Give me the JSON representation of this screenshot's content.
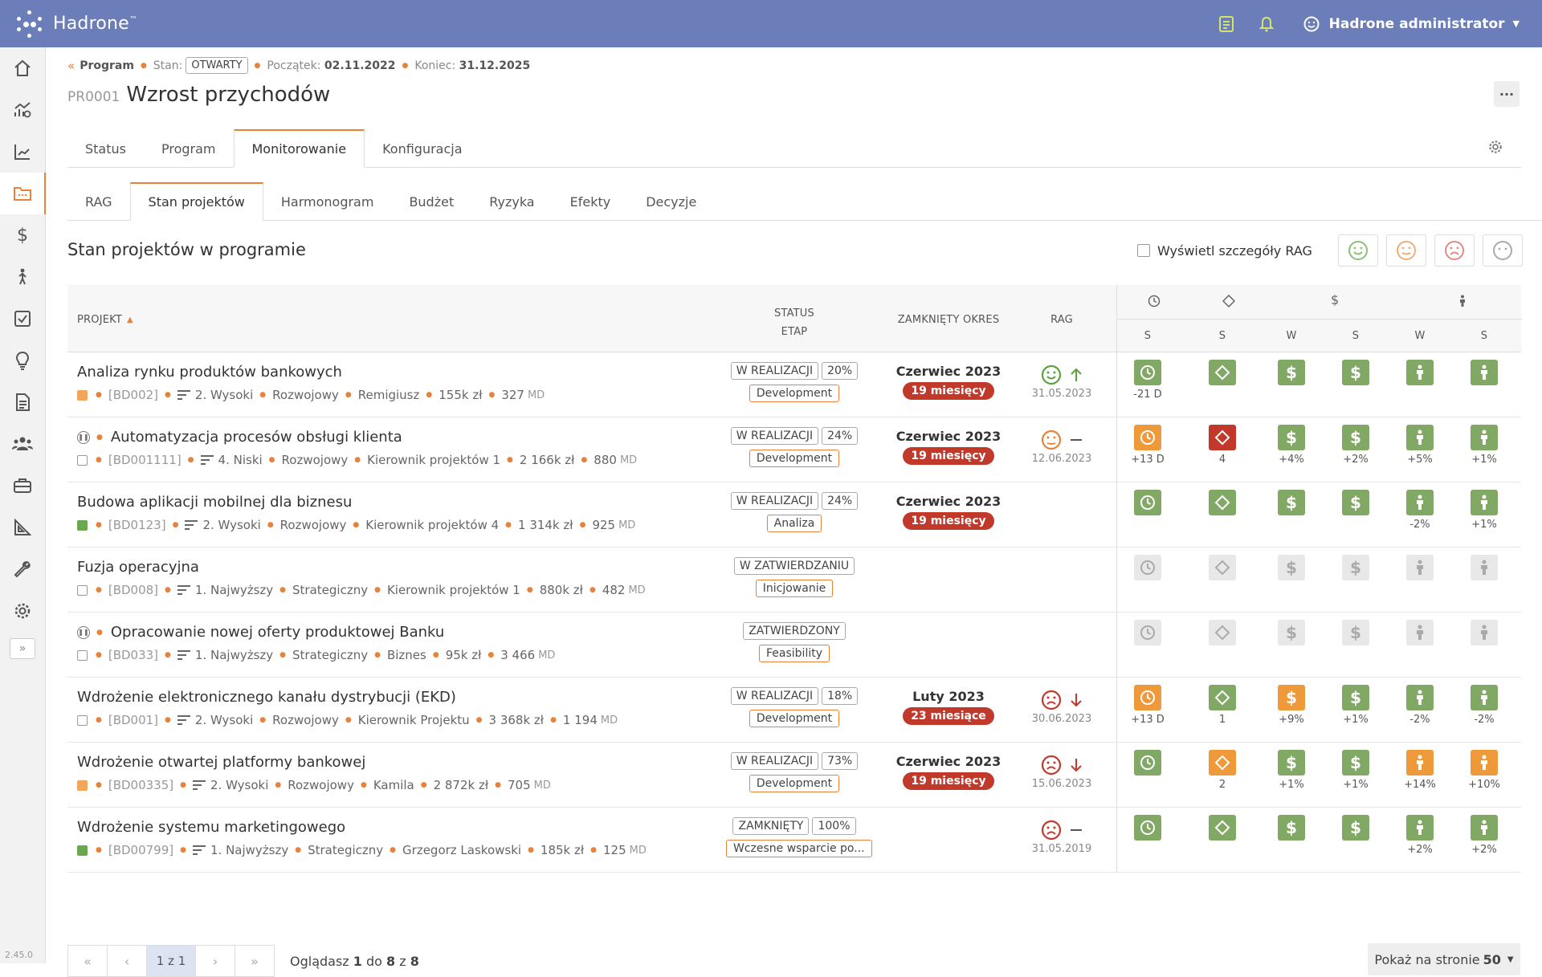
{
  "app": {
    "name": "Hadrone",
    "tm": "™",
    "version": "2.45.0",
    "user": "Hadrone administrator"
  },
  "breadcrumb": {
    "back_label": "Program",
    "stan_label": "Stan:",
    "stan_value": "OTWARTY",
    "start_label": "Początek:",
    "start_value": "02.11.2022",
    "end_label": "Koniec:",
    "end_value": "31.12.2025"
  },
  "page": {
    "code": "PR0001",
    "title": "Wzrost przychodów",
    "more_label": "···"
  },
  "tabs_main": [
    "Status",
    "Program",
    "Monitorowanie",
    "Konfiguracja"
  ],
  "tabs_sub": [
    "RAG",
    "Stan projektów",
    "Harmonogram",
    "Budżet",
    "Ryzyka",
    "Efekty",
    "Decyzje"
  ],
  "section": {
    "title": "Stan projektów w programie",
    "rag_details_label": "Wyświetl szczegóły RAG"
  },
  "table": {
    "headers": {
      "project": "PROJEKT",
      "status": "STATUS",
      "stage": "ETAP",
      "period": "ZAMKNIĘTY OKRES",
      "rag": "RAG",
      "sub": [
        "S",
        "S",
        "W",
        "S",
        "W",
        "S"
      ]
    },
    "rows": [
      {
        "name": "Analiza rynku produktów bankowych",
        "paused": false,
        "icon": "orange",
        "id": "[BD002]",
        "priority": "2. Wysoki",
        "type": "Rozwojowy",
        "owner": "Remigiusz",
        "budget": "155k zł",
        "effort": "327",
        "effort_unit": "MD",
        "status": "W REALIZACJI",
        "pct": "20%",
        "stage": "Development",
        "month": "Czerwiec 2023",
        "months_ago": "19 miesięcy",
        "rag_face": "happy",
        "rag_trend": "up",
        "rag_date": "31.05.2023",
        "kpi": [
          {
            "c": "green",
            "v": "-21 D"
          },
          {
            "c": "green",
            "v": ""
          },
          {
            "c": "green",
            "v": ""
          },
          {
            "c": "green",
            "v": ""
          },
          {
            "c": "green",
            "v": ""
          },
          {
            "c": "green",
            "v": ""
          }
        ]
      },
      {
        "name": "Automatyzacja procesów obsługi klienta",
        "paused": true,
        "icon": "gray",
        "id": "[BD001111]",
        "priority": "4. Niski",
        "type": "Rozwojowy",
        "owner": "Kierownik projektów 1",
        "budget": "2 166k zł",
        "effort": "880",
        "effort_unit": "MD",
        "status": "W REALIZACJI",
        "pct": "24%",
        "stage": "Development",
        "month": "Czerwiec 2023",
        "months_ago": "19 miesięcy",
        "rag_face": "neutral",
        "rag_trend": "flat",
        "rag_date": "12.06.2023",
        "kpi": [
          {
            "c": "orange",
            "v": "+13 D"
          },
          {
            "c": "red",
            "v": "4"
          },
          {
            "c": "green",
            "v": "+4%"
          },
          {
            "c": "green",
            "v": "+2%"
          },
          {
            "c": "green",
            "v": "+5%"
          },
          {
            "c": "green",
            "v": "+1%"
          }
        ]
      },
      {
        "name": "Budowa aplikacji mobilnej dla biznesu",
        "paused": false,
        "icon": "green",
        "id": "[BD0123]",
        "priority": "2. Wysoki",
        "type": "Rozwojowy",
        "owner": "Kierownik projektów 4",
        "budget": "1 314k zł",
        "effort": "925",
        "effort_unit": "MD",
        "status": "W REALIZACJI",
        "pct": "24%",
        "stage": "Analiza",
        "month": "Czerwiec 2023",
        "months_ago": "19 miesięcy",
        "rag_face": "",
        "rag_trend": "",
        "rag_date": "",
        "kpi": [
          {
            "c": "green",
            "v": ""
          },
          {
            "c": "green",
            "v": ""
          },
          {
            "c": "green",
            "v": ""
          },
          {
            "c": "green",
            "v": ""
          },
          {
            "c": "green",
            "v": "-2%"
          },
          {
            "c": "green",
            "v": "+1%"
          }
        ]
      },
      {
        "name": "Fuzja operacyjna",
        "paused": false,
        "icon": "gray",
        "id": "[BD008]",
        "priority": "1. Najwyższy",
        "type": "Strategiczny",
        "owner": "Kierownik projektów 1",
        "budget": "880k zł",
        "effort": "482",
        "effort_unit": "MD",
        "status": "W ZATWIERDZANIU",
        "pct": "",
        "stage": "Inicjowanie",
        "month": "",
        "months_ago": "",
        "rag_face": "",
        "rag_trend": "",
        "rag_date": "",
        "kpi": [
          {
            "c": "gray",
            "v": ""
          },
          {
            "c": "gray",
            "v": ""
          },
          {
            "c": "gray",
            "v": ""
          },
          {
            "c": "gray",
            "v": ""
          },
          {
            "c": "gray",
            "v": ""
          },
          {
            "c": "gray",
            "v": ""
          }
        ]
      },
      {
        "name": "Opracowanie nowej oferty produktowej Banku",
        "paused": true,
        "icon": "gray",
        "id": "[BD033]",
        "priority": "1. Najwyższy",
        "type": "Strategiczny",
        "owner": "Biznes",
        "budget": "95k zł",
        "effort": "3 466",
        "effort_unit": "MD",
        "status": "ZATWIERDZONY",
        "pct": "",
        "stage": "Feasibility",
        "month": "",
        "months_ago": "",
        "rag_face": "",
        "rag_trend": "",
        "rag_date": "",
        "kpi": [
          {
            "c": "gray",
            "v": ""
          },
          {
            "c": "gray",
            "v": ""
          },
          {
            "c": "gray",
            "v": ""
          },
          {
            "c": "gray",
            "v": ""
          },
          {
            "c": "gray",
            "v": ""
          },
          {
            "c": "gray",
            "v": ""
          }
        ]
      },
      {
        "name": "Wdrożenie elektronicznego kanału dystrybucji (EKD)",
        "paused": false,
        "icon": "gray",
        "id": "[BD001]",
        "priority": "2. Wysoki",
        "type": "Rozwojowy",
        "owner": "Kierownik Projektu",
        "budget": "3 368k zł",
        "effort": "1 194",
        "effort_unit": "MD",
        "status": "W REALIZACJI",
        "pct": "18%",
        "stage": "Development",
        "month": "Luty 2023",
        "months_ago": "23 miesiące",
        "rag_face": "sad",
        "rag_trend": "down",
        "rag_date": "30.06.2023",
        "kpi": [
          {
            "c": "orange",
            "v": "+13 D"
          },
          {
            "c": "green",
            "v": "1"
          },
          {
            "c": "orange",
            "v": "+9%"
          },
          {
            "c": "green",
            "v": "+1%"
          },
          {
            "c": "green",
            "v": "-2%"
          },
          {
            "c": "green",
            "v": "-2%"
          }
        ]
      },
      {
        "name": "Wdrożenie otwartej platformy bankowej",
        "paused": false,
        "icon": "orange",
        "id": "[BD00335]",
        "priority": "2. Wysoki",
        "type": "Rozwojowy",
        "owner": "Kamila",
        "budget": "2 872k zł",
        "effort": "705",
        "effort_unit": "MD",
        "status": "W REALIZACJI",
        "pct": "73%",
        "stage": "Development",
        "month": "Czerwiec 2023",
        "months_ago": "19 miesięcy",
        "rag_face": "sad",
        "rag_trend": "down",
        "rag_date": "15.06.2023",
        "kpi": [
          {
            "c": "green",
            "v": ""
          },
          {
            "c": "orange",
            "v": "2"
          },
          {
            "c": "green",
            "v": "+1%"
          },
          {
            "c": "green",
            "v": "+1%"
          },
          {
            "c": "orange",
            "v": "+14%"
          },
          {
            "c": "orange",
            "v": "+10%"
          }
        ]
      },
      {
        "name": "Wdrożenie systemu marketingowego",
        "paused": false,
        "icon": "green",
        "id": "[BD00799]",
        "priority": "1. Najwyższy",
        "type": "Strategiczny",
        "owner": "Grzegorz Laskowski",
        "budget": "185k zł",
        "effort": "125",
        "effort_unit": "MD",
        "status": "ZAMKNIĘTY",
        "pct": "100%",
        "stage": "Wczesne wsparcie po...",
        "month": "",
        "months_ago": "",
        "rag_face": "sad",
        "rag_trend": "flat",
        "rag_date": "31.05.2019",
        "kpi": [
          {
            "c": "green",
            "v": ""
          },
          {
            "c": "green",
            "v": ""
          },
          {
            "c": "green",
            "v": ""
          },
          {
            "c": "green",
            "v": ""
          },
          {
            "c": "green",
            "v": "+2%"
          },
          {
            "c": "green",
            "v": "+2%"
          }
        ]
      }
    ]
  },
  "pagination": {
    "current": "1 z 1",
    "info_prefix": "Oglądasz ",
    "info_from": "1",
    "info_mid": " do ",
    "info_to": "8",
    "info_of": " z ",
    "info_total": "8",
    "per_page_label": "Pokaż na stronie ",
    "per_page_value": "50"
  },
  "colors": {
    "topbar": "#6b7eb9",
    "accent": "#e8823a",
    "green": "#82a866",
    "orange": "#ef9a3a",
    "red": "#c0392b"
  }
}
